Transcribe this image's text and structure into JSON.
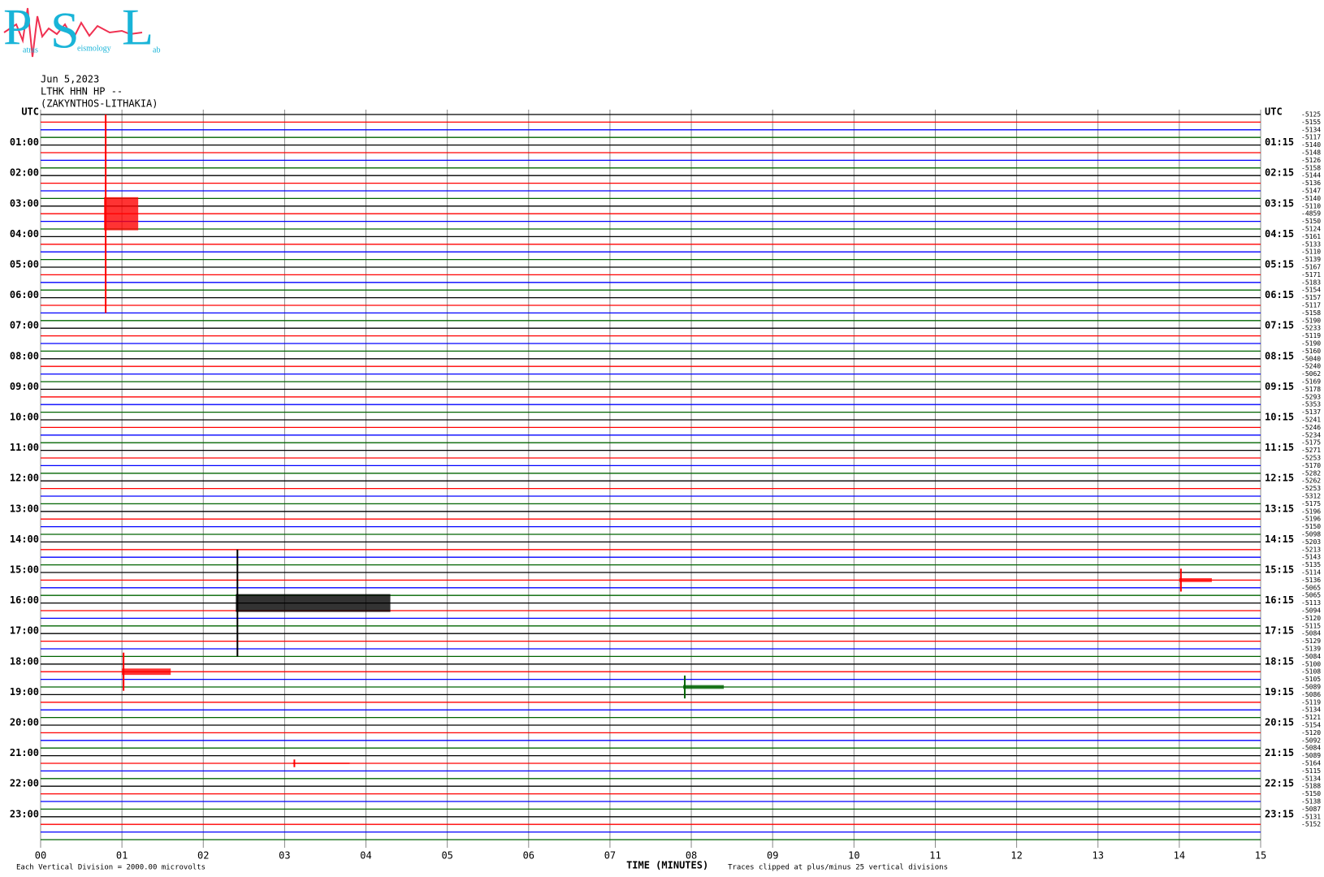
{
  "header": {
    "logo": {
      "p": "P",
      "s": "S",
      "l": "L",
      "atras": "atras",
      "eismology": "eismology",
      "ab": "ab"
    },
    "date": "Jun 5,2023",
    "station": "LTHK HHN HP --",
    "location": "(ZAKYNTHOS-LITHAKIA)"
  },
  "chart_data": {
    "type": "helicorder",
    "left_labels": [
      "UTC",
      "01:00",
      "02:00",
      "03:00",
      "04:00",
      "05:00",
      "06:00",
      "07:00",
      "08:00",
      "09:00",
      "10:00",
      "11:00",
      "12:00",
      "13:00",
      "14:00",
      "15:00",
      "16:00",
      "17:00",
      "18:00",
      "19:00",
      "20:00",
      "21:00",
      "22:00",
      "23:00"
    ],
    "right_labels": [
      "UTC",
      "01:15",
      "02:15",
      "03:15",
      "04:15",
      "05:15",
      "06:15",
      "07:15",
      "08:15",
      "09:15",
      "10:15",
      "11:15",
      "12:15",
      "13:15",
      "14:15",
      "15:15",
      "16:15",
      "17:15",
      "18:15",
      "19:15",
      "20:15",
      "21:15",
      "22:15",
      "23:15"
    ],
    "trace_colors": [
      "#000000",
      "#ff0000",
      "#0000ff",
      "#006400"
    ],
    "offsets": [
      -5125,
      -5155,
      -5134,
      -5117,
      -5140,
      -5148,
      -5126,
      -5158,
      -5144,
      -5136,
      -5147,
      -5140,
      -5110,
      -4859,
      -5150,
      -5124,
      -5161,
      -5133,
      -5110,
      -5139,
      -5167,
      -5171,
      -5183,
      -5154,
      -5157,
      -5117,
      -5158,
      -5190,
      -5233,
      -5119,
      -5190,
      -5160,
      -5040,
      -5240,
      -5062,
      -5169,
      -5178,
      -5293,
      -5353,
      -5137,
      -5241,
      -5246,
      -5234,
      -5175,
      -5271,
      -5253,
      -5170,
      -5282,
      -5262,
      -5253,
      -5312,
      -5175,
      -5196,
      -5196,
      -5150,
      -5098,
      -5203,
      -5213,
      -5143,
      -5135,
      -5114,
      -5136,
      -5065,
      -5065,
      -5113,
      -5094,
      -5120,
      -5115,
      -5084,
      -5129,
      -5139,
      -5084,
      -5100,
      -5108,
      -5105,
      -5089,
      -5086,
      -5119,
      -5134,
      -5121,
      -5154,
      -5120,
      -5092,
      -5084,
      -5089,
      -5164,
      -5115,
      -5134,
      -5188,
      -5150,
      -5138,
      -5087,
      -5131,
      -5152
    ],
    "events": [
      {
        "trace": 13,
        "start": 0.78,
        "end": 1.2,
        "amplitude": 13
      },
      {
        "trace": 64,
        "start": 2.4,
        "end": 4.3,
        "amplitude": 7
      },
      {
        "trace": 73,
        "start": 1.0,
        "end": 1.6,
        "amplitude": 2.5
      },
      {
        "trace": 75,
        "start": 7.9,
        "end": 8.4,
        "amplitude": 1.5
      },
      {
        "trace": 61,
        "start": 14.0,
        "end": 14.4,
        "amplitude": 1.5
      },
      {
        "trace": 85,
        "start": 3.1,
        "end": 3.8,
        "amplitude": 0.5
      }
    ],
    "xlabel": "TIME (MINUTES)",
    "xlim": [
      0,
      15
    ],
    "xticks": [
      {
        "value": 0,
        "label": "00"
      },
      {
        "value": 1,
        "label": "01"
      },
      {
        "value": 2,
        "label": "02"
      },
      {
        "value": 3,
        "label": "03"
      },
      {
        "value": 4,
        "label": "04"
      },
      {
        "value": 5,
        "label": "05"
      },
      {
        "value": 6,
        "label": "06"
      },
      {
        "value": 7,
        "label": "07"
      },
      {
        "value": 8,
        "label": "08"
      },
      {
        "value": 9,
        "label": "09"
      },
      {
        "value": 10,
        "label": "10"
      },
      {
        "value": 11,
        "label": "11"
      },
      {
        "value": 12,
        "label": "12"
      },
      {
        "value": 13,
        "label": "13"
      },
      {
        "value": 14,
        "label": "14"
      },
      {
        "value": 15,
        "label": "15"
      }
    ],
    "division_note": "Each Vertical Division = 2000.00 microvolts",
    "clip_note": "Traces clipped at plus/minus 25 vertical divisions"
  }
}
